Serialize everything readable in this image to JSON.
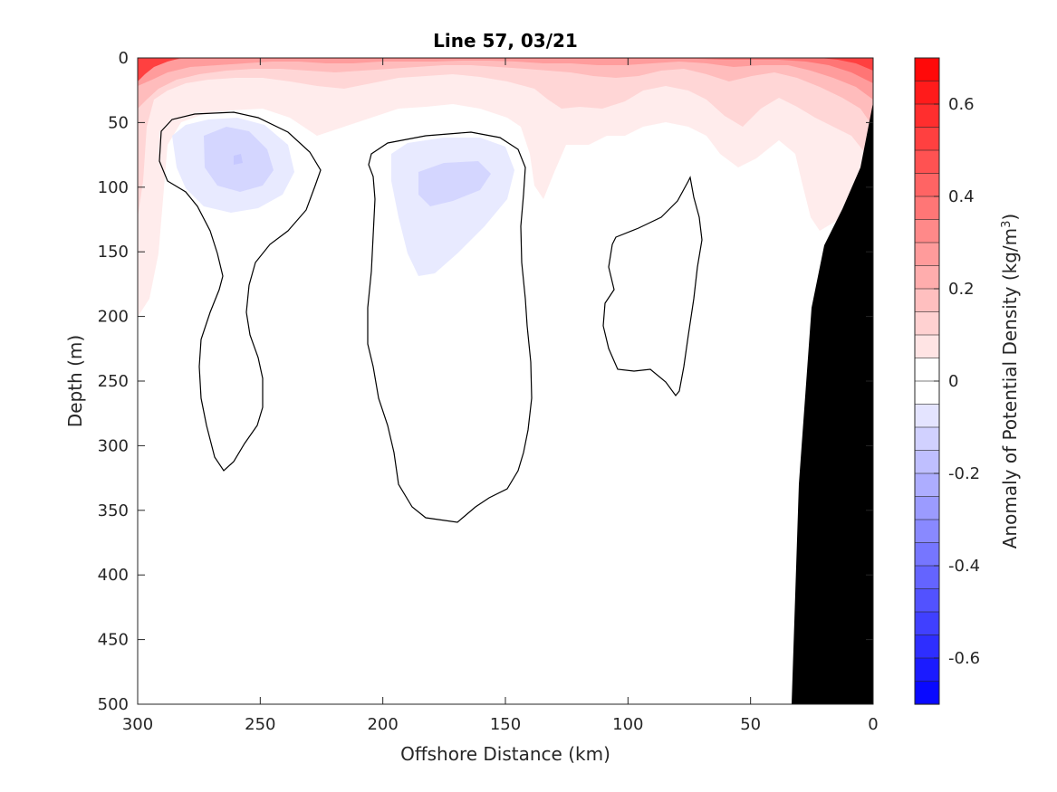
{
  "chart_data": {
    "type": "heatmap",
    "subtype": "filled-contour depth section",
    "title": "Line 57, 03/21",
    "xlabel": "Offshore Distance (km)",
    "ylabel": "Depth (m)",
    "xlim": [
      300,
      0
    ],
    "ylim": [
      500,
      0
    ],
    "x_reversed": true,
    "y_reversed": true,
    "xticks": [
      300,
      250,
      200,
      150,
      100,
      50,
      0
    ],
    "xtick_labels": [
      "300",
      "250",
      "200",
      "150",
      "100",
      "50",
      "0"
    ],
    "yticks": [
      0,
      50,
      100,
      150,
      200,
      250,
      300,
      350,
      400,
      450,
      500
    ],
    "ytick_labels": [
      "0",
      "50",
      "100",
      "150",
      "200",
      "250",
      "300",
      "350",
      "400",
      "450",
      "500"
    ],
    "grid": false,
    "colorbar": {
      "label": "Anomaly of Potential Density (kg/m",
      "label_superscript": "3",
      "label_suffix": ")",
      "range": [
        -0.7,
        0.7
      ],
      "levels": 28,
      "ticks": [
        0.6,
        0.4,
        0.2,
        0,
        -0.2,
        -0.4,
        -0.6
      ],
      "tick_labels": [
        "0.6",
        "0.4",
        "0.2",
        "0",
        "-0.2",
        "-0.4",
        "-0.6"
      ],
      "colormap": "blue-white-red",
      "negative_color": "#0000ff",
      "positive_color": "#ff0000",
      "neutral_color": "#ffffff"
    },
    "bathymetry": {
      "color": "#000000",
      "profile_x": [
        0,
        6,
        13,
        20,
        28,
        32,
        34
      ],
      "profile_depth": [
        35,
        85,
        120,
        145,
        190,
        330,
        500
      ]
    },
    "surface_layer": {
      "x": [
        300,
        280,
        260,
        240,
        220,
        200,
        180,
        160,
        150,
        140,
        130,
        120,
        110,
        100,
        90,
        80,
        70,
        60,
        50,
        40,
        30,
        20,
        10,
        0
      ],
      "approx_anomaly_at_surface": [
        0.7,
        0.55,
        0.5,
        0.45,
        0.45,
        0.45,
        0.45,
        0.45,
        0.4,
        0.45,
        0.45,
        0.4,
        0.45,
        0.4,
        0.4,
        0.4,
        0.4,
        0.45,
        0.45,
        0.45,
        0.45,
        0.5,
        0.55,
        0.6
      ],
      "approx_zero_contour_depth": [
        200,
        50,
        48,
        62,
        75,
        65,
        60,
        58,
        60,
        90,
        120,
        100,
        80,
        70,
        65,
        72,
        90,
        65,
        88,
        72,
        85,
        125,
        130,
        140
      ]
    },
    "negative_cores": [
      {
        "center_x": 262,
        "center_depth": 80,
        "approx_min_anomaly": -0.1
      },
      {
        "center_x": 175,
        "center_depth": 100,
        "approx_min_anomaly": -0.1
      }
    ],
    "zero_contours_closed": 3
  }
}
